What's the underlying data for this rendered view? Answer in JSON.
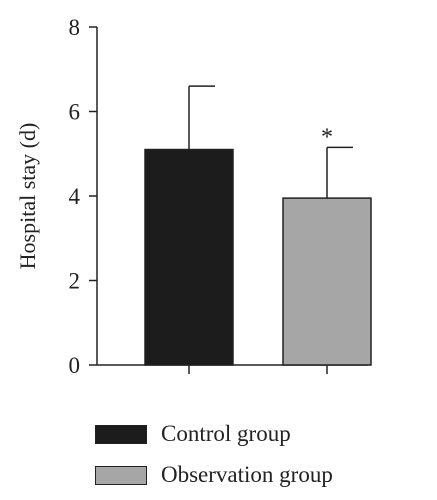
{
  "chart_data": {
    "type": "bar",
    "ylabel": "Hospital stay (d)",
    "ylim": [
      0,
      8
    ],
    "yticks": [
      0,
      2,
      4,
      6,
      8
    ],
    "grid": false,
    "legend_position": "bottom",
    "series": [
      {
        "name": "Control group",
        "value": 5.1,
        "error": 1.5,
        "color": "#1c1c1c"
      },
      {
        "name": "Observation group",
        "value": 3.95,
        "error": 1.2,
        "color": "#a6a6a6",
        "annotation": "*"
      }
    ]
  }
}
